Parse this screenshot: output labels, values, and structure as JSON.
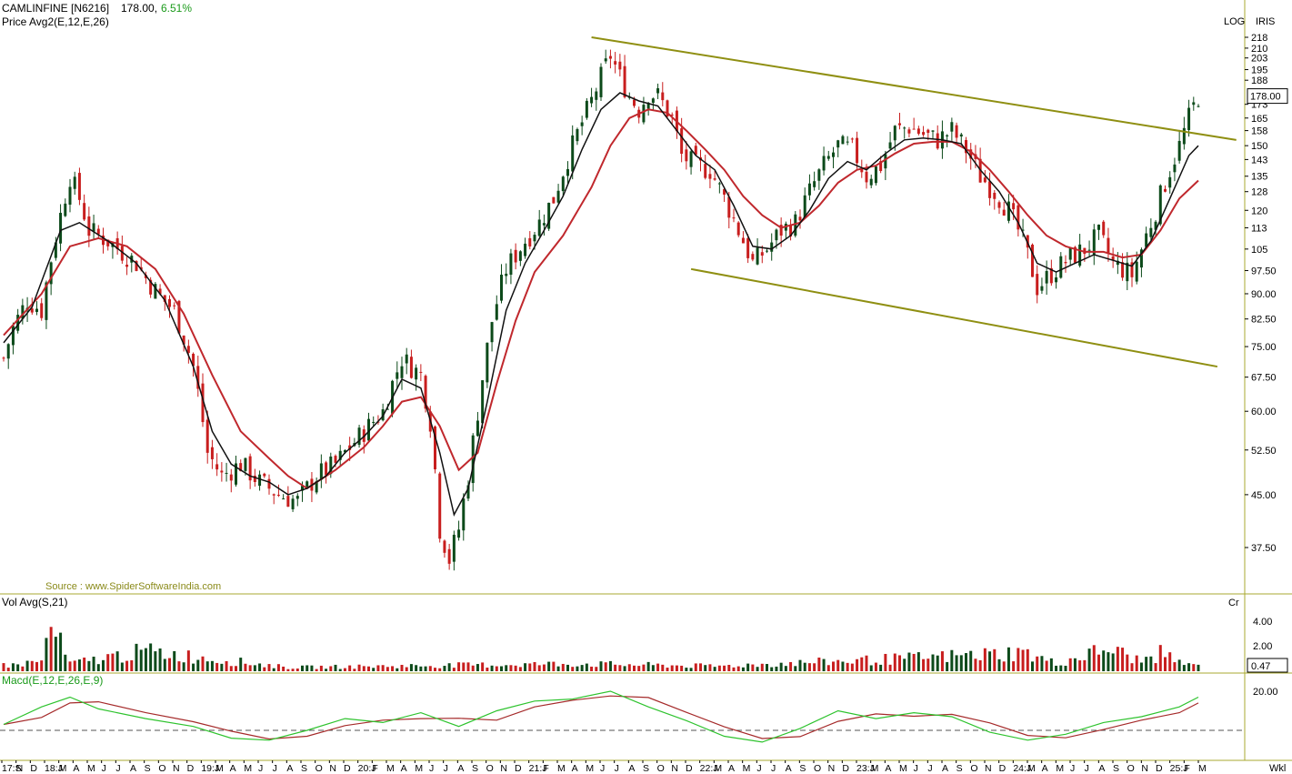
{
  "header": {
    "symbol": "CAMLINFINE [N6216]",
    "price": "178.00,",
    "change": "6.51%",
    "indicator": "Price  Avg2(E,12,E,26)",
    "log_label": "LOG",
    "iris_label": "IRIS",
    "source": "Source : www.SpiderSoftwareIndia.com"
  },
  "volume_panel": {
    "label": "Vol  Avg(S,21)",
    "unit": "Cr",
    "ticks": [
      "4.00",
      "2.00"
    ],
    "last_value": "0.47"
  },
  "macd_panel": {
    "label": "Macd(E,12,E,26,E,9)",
    "ticks": [
      "20.00"
    ]
  },
  "x_axis": {
    "labels": [
      "17:S",
      "N",
      "D",
      "18:J",
      "M",
      "A",
      "M",
      "J",
      "J",
      "A",
      "S",
      "O",
      "N",
      "D",
      "19:J",
      "M",
      "A",
      "M",
      "J",
      "J",
      "A",
      "S",
      "O",
      "N",
      "D",
      "20:J",
      "F",
      "M",
      "A",
      "M",
      "J",
      "J",
      "A",
      "S",
      "O",
      "N",
      "D",
      "21:J",
      "F",
      "M",
      "A",
      "M",
      "J",
      "J",
      "A",
      "S",
      "O",
      "N",
      "D",
      "22:J",
      "M",
      "A",
      "M",
      "J",
      "J",
      "A",
      "S",
      "O",
      "N",
      "D",
      "23:J",
      "M",
      "A",
      "M",
      "J",
      "J",
      "A",
      "S",
      "O",
      "N",
      "D",
      "24:J",
      "M",
      "A",
      "M",
      "J",
      "J",
      "A",
      "S",
      "O",
      "N",
      "D",
      "25:J",
      "F",
      "M"
    ],
    "period_label": "Wkl"
  },
  "colors": {
    "up": "#0c4a1a",
    "down": "#c81e1e",
    "ema_fast": "#111111",
    "ema_slow": "#c0282d",
    "channel": "#8f8f12",
    "macd": "#2ec32e",
    "signal": "#a52a2a",
    "panel_border": "#a8a830"
  },
  "chart_data": {
    "type": "candlestick",
    "title": "CAMLINFINE [N6216]",
    "y_scale": "log",
    "y_ticks": [
      218,
      210,
      203,
      195,
      188,
      173,
      165,
      158,
      150,
      143,
      135,
      128,
      120,
      113,
      105,
      97.5,
      90,
      82.5,
      75,
      67.5,
      60,
      52.5,
      45,
      37.5
    ],
    "y_tick_labels": [
      "218",
      "210",
      "203",
      "195",
      "188",
      "173",
      "165",
      "158",
      "150",
      "143",
      "135",
      "128",
      "120",
      "113",
      "105",
      "97.50",
      "90.00",
      "82.50",
      "75.00",
      "67.50",
      "60.00",
      "52.50",
      "45.00",
      "37.50"
    ],
    "last_price": 178.0,
    "last_price_label": "178.00",
    "series": [
      {
        "name": "Price",
        "values": [
          [
            0,
            72
          ],
          [
            2,
            80
          ],
          [
            5,
            88
          ],
          [
            8,
            85
          ],
          [
            12,
            118
          ],
          [
            14,
            135
          ],
          [
            16,
            125
          ],
          [
            18,
            112
          ],
          [
            22,
            108
          ],
          [
            25,
            104
          ],
          [
            28,
            100
          ],
          [
            30,
            95
          ],
          [
            33,
            89
          ],
          [
            36,
            85
          ],
          [
            40,
            70
          ],
          [
            43,
            52
          ],
          [
            46,
            48
          ],
          [
            50,
            50
          ],
          [
            54,
            47
          ],
          [
            58,
            45
          ],
          [
            62,
            44
          ],
          [
            66,
            48
          ],
          [
            70,
            50
          ],
          [
            73,
            53
          ],
          [
            76,
            56
          ],
          [
            80,
            60
          ],
          [
            84,
            72
          ],
          [
            88,
            68
          ],
          [
            90,
            58
          ],
          [
            92,
            40
          ],
          [
            94,
            36
          ],
          [
            96,
            40
          ],
          [
            98,
            48
          ],
          [
            100,
            60
          ],
          [
            103,
            82
          ],
          [
            106,
            98
          ],
          [
            110,
            108
          ],
          [
            113,
            115
          ],
          [
            116,
            125
          ],
          [
            120,
            150
          ],
          [
            124,
            175
          ],
          [
            128,
            205
          ],
          [
            130,
            190
          ],
          [
            132,
            178
          ],
          [
            134,
            170
          ],
          [
            136,
            180
          ],
          [
            138,
            178
          ],
          [
            141,
            165
          ],
          [
            143,
            145
          ],
          [
            146,
            140
          ],
          [
            149,
            138
          ],
          [
            152,
            125
          ],
          [
            155,
            112
          ],
          [
            158,
            100
          ],
          [
            161,
            105
          ],
          [
            164,
            112
          ],
          [
            167,
            115
          ],
          [
            170,
            128
          ],
          [
            173,
            140
          ],
          [
            176,
            150
          ],
          [
            179,
            148
          ],
          [
            182,
            135
          ],
          [
            185,
            140
          ],
          [
            188,
            158
          ],
          [
            191,
            160
          ],
          [
            194,
            156
          ],
          [
            197,
            153
          ],
          [
            200,
            158
          ],
          [
            203,
            148
          ],
          [
            206,
            135
          ],
          [
            209,
            128
          ],
          [
            212,
            120
          ],
          [
            215,
            108
          ],
          [
            218,
            92
          ],
          [
            220,
            95
          ],
          [
            222,
            98
          ],
          [
            225,
            102
          ],
          [
            228,
            105
          ],
          [
            231,
            110
          ],
          [
            234,
            100
          ],
          [
            236,
            98
          ],
          [
            238,
            96
          ],
          [
            240,
            105
          ],
          [
            243,
            120
          ],
          [
            246,
            138
          ],
          [
            248,
            150
          ],
          [
            250,
            165
          ],
          [
            252,
            178
          ]
        ]
      },
      {
        "name": "EMA 12",
        "values": [
          [
            0,
            76
          ],
          [
            6,
            86
          ],
          [
            12,
            112
          ],
          [
            16,
            115
          ],
          [
            22,
            108
          ],
          [
            28,
            100
          ],
          [
            34,
            88
          ],
          [
            40,
            70
          ],
          [
            44,
            56
          ],
          [
            48,
            50
          ],
          [
            52,
            48
          ],
          [
            56,
            47
          ],
          [
            60,
            45
          ],
          [
            64,
            46
          ],
          [
            68,
            48
          ],
          [
            72,
            52
          ],
          [
            76,
            55
          ],
          [
            80,
            59
          ],
          [
            84,
            67
          ],
          [
            88,
            65
          ],
          [
            92,
            52
          ],
          [
            95,
            42
          ],
          [
            98,
            46
          ],
          [
            102,
            62
          ],
          [
            106,
            85
          ],
          [
            110,
            100
          ],
          [
            114,
            112
          ],
          [
            118,
            126
          ],
          [
            122,
            148
          ],
          [
            126,
            170
          ],
          [
            130,
            180
          ],
          [
            134,
            175
          ],
          [
            138,
            172
          ],
          [
            142,
            158
          ],
          [
            146,
            145
          ],
          [
            150,
            138
          ],
          [
            154,
            122
          ],
          [
            158,
            106
          ],
          [
            162,
            105
          ],
          [
            166,
            110
          ],
          [
            170,
            120
          ],
          [
            174,
            134
          ],
          [
            178,
            142
          ],
          [
            182,
            138
          ],
          [
            186,
            146
          ],
          [
            190,
            153
          ],
          [
            194,
            154
          ],
          [
            198,
            153
          ],
          [
            202,
            151
          ],
          [
            206,
            138
          ],
          [
            210,
            128
          ],
          [
            214,
            115
          ],
          [
            218,
            100
          ],
          [
            222,
            97
          ],
          [
            226,
            100
          ],
          [
            230,
            103
          ],
          [
            234,
            101
          ],
          [
            238,
            99
          ],
          [
            242,
            108
          ],
          [
            246,
            125
          ],
          [
            250,
            145
          ],
          [
            252,
            150
          ]
        ]
      },
      {
        "name": "EMA 26",
        "values": [
          [
            0,
            78
          ],
          [
            8,
            90
          ],
          [
            14,
            106
          ],
          [
            20,
            109
          ],
          [
            26,
            106
          ],
          [
            32,
            98
          ],
          [
            38,
            84
          ],
          [
            44,
            68
          ],
          [
            50,
            56
          ],
          [
            56,
            51
          ],
          [
            60,
            48
          ],
          [
            64,
            46
          ],
          [
            70,
            49
          ],
          [
            76,
            53
          ],
          [
            80,
            57
          ],
          [
            84,
            62
          ],
          [
            88,
            63
          ],
          [
            92,
            57
          ],
          [
            96,
            49
          ],
          [
            100,
            52
          ],
          [
            104,
            66
          ],
          [
            108,
            82
          ],
          [
            112,
            97
          ],
          [
            118,
            110
          ],
          [
            124,
            130
          ],
          [
            128,
            150
          ],
          [
            132,
            165
          ],
          [
            136,
            170
          ],
          [
            140,
            168
          ],
          [
            144,
            158
          ],
          [
            148,
            148
          ],
          [
            152,
            138
          ],
          [
            156,
            126
          ],
          [
            160,
            118
          ],
          [
            164,
            113
          ],
          [
            168,
            115
          ],
          [
            172,
            122
          ],
          [
            176,
            132
          ],
          [
            180,
            138
          ],
          [
            184,
            140
          ],
          [
            188,
            146
          ],
          [
            192,
            151
          ],
          [
            196,
            152
          ],
          [
            200,
            152
          ],
          [
            204,
            147
          ],
          [
            208,
            138
          ],
          [
            212,
            128
          ],
          [
            216,
            118
          ],
          [
            220,
            110
          ],
          [
            224,
            106
          ],
          [
            228,
            104
          ],
          [
            232,
            104
          ],
          [
            236,
            102
          ],
          [
            240,
            103
          ],
          [
            244,
            112
          ],
          [
            248,
            125
          ],
          [
            252,
            133
          ]
        ]
      }
    ],
    "channel": {
      "upper": [
        [
          124,
          218
        ],
        [
          260,
          153
        ]
      ],
      "lower": [
        [
          145,
          98
        ],
        [
          256,
          70
        ]
      ]
    },
    "volume_cr": [
      [
        2,
        0.5
      ],
      [
        8,
        0.8
      ],
      [
        10,
        3.6
      ],
      [
        14,
        0.6
      ],
      [
        30,
        1.6
      ],
      [
        60,
        0.3
      ],
      [
        100,
        0.5
      ],
      [
        120,
        0.6
      ],
      [
        150,
        0.4
      ],
      [
        190,
        1.0
      ],
      [
        215,
        1.5
      ],
      [
        222,
        0.6
      ],
      [
        233,
        1.8
      ],
      [
        240,
        0.8
      ],
      [
        244,
        1.4
      ],
      [
        250,
        0.47
      ]
    ],
    "macd": [
      [
        0,
        3
      ],
      [
        8,
        12
      ],
      [
        14,
        17
      ],
      [
        20,
        11
      ],
      [
        30,
        6
      ],
      [
        40,
        2
      ],
      [
        48,
        -4
      ],
      [
        56,
        -5
      ],
      [
        64,
        0
      ],
      [
        72,
        6
      ],
      [
        80,
        4
      ],
      [
        88,
        9
      ],
      [
        96,
        2
      ],
      [
        104,
        10
      ],
      [
        112,
        15
      ],
      [
        120,
        16
      ],
      [
        128,
        20
      ],
      [
        136,
        12
      ],
      [
        144,
        5
      ],
      [
        152,
        -3
      ],
      [
        160,
        -6
      ],
      [
        168,
        1
      ],
      [
        176,
        10
      ],
      [
        184,
        6
      ],
      [
        192,
        9
      ],
      [
        200,
        7
      ],
      [
        208,
        -1
      ],
      [
        216,
        -5
      ],
      [
        224,
        -2
      ],
      [
        232,
        4
      ],
      [
        240,
        7
      ],
      [
        248,
        12
      ],
      [
        252,
        17
      ]
    ]
  }
}
